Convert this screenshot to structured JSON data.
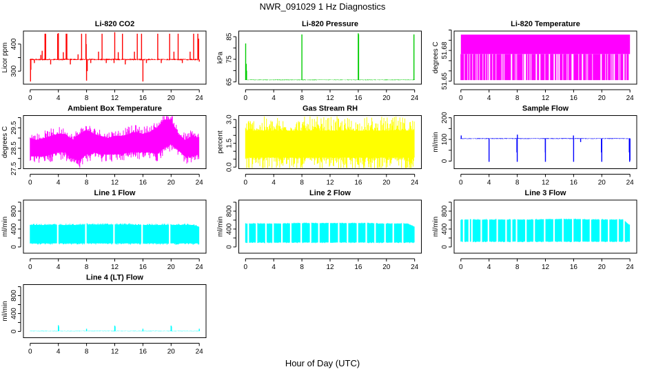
{
  "title": "NWR_091029  1 Hz Diagnostics",
  "xlabel": "Hour of Day (UTC)",
  "chart_data": [
    {
      "type": "line",
      "title": "Li-820 CO2",
      "ylabel": "Licor ppm",
      "color": "#FF0000",
      "xlim": [
        0,
        24
      ],
      "ylim": [
        252,
        448
      ],
      "yticks": [
        300,
        350,
        400
      ],
      "ylabels": [
        "300",
        "400"
      ],
      "ylabel_values": [
        300,
        400
      ],
      "xticks": [
        0,
        4,
        8,
        12,
        16,
        20,
        24
      ],
      "kind": "baseline",
      "base": 343,
      "noise": 3,
      "spikes": [
        [
          0.05,
          262
        ],
        [
          0.1,
          305
        ],
        [
          0.6,
          330
        ],
        [
          1.5,
          360
        ],
        [
          1.7,
          375
        ],
        [
          2.1,
          438
        ],
        [
          2.2,
          438
        ],
        [
          2.9,
          325
        ],
        [
          3.9,
          438
        ],
        [
          4.0,
          440
        ],
        [
          4.7,
          370
        ],
        [
          5.1,
          438
        ],
        [
          5.2,
          438
        ],
        [
          5.7,
          325
        ],
        [
          6.8,
          362
        ],
        [
          7.3,
          438
        ],
        [
          7.9,
          438
        ],
        [
          7.95,
          400
        ],
        [
          8.0,
          265
        ],
        [
          8.1,
          300
        ],
        [
          8.6,
          330
        ],
        [
          9.7,
          372
        ],
        [
          10.2,
          438
        ],
        [
          10.8,
          330
        ],
        [
          11.9,
          330
        ],
        [
          12.0,
          444
        ],
        [
          12.5,
          370
        ],
        [
          13.1,
          438
        ],
        [
          13.5,
          325
        ],
        [
          14.8,
          372
        ],
        [
          15.2,
          438
        ],
        [
          15.8,
          438
        ],
        [
          16.0,
          262
        ],
        [
          16.5,
          330
        ],
        [
          18.1,
          438
        ],
        [
          18.6,
          330
        ],
        [
          19.8,
          438
        ],
        [
          20.4,
          372
        ],
        [
          21.0,
          438
        ],
        [
          21.6,
          330
        ],
        [
          22.7,
          372
        ],
        [
          23.2,
          438
        ],
        [
          23.8,
          438
        ],
        [
          23.9,
          420
        ],
        [
          24.0,
          335
        ]
      ]
    },
    {
      "type": "line",
      "title": "Li-820 Pressure",
      "ylabel": "kPa",
      "color": "#00CC00",
      "xlim": [
        0,
        24
      ],
      "ylim": [
        64,
        87.5
      ],
      "yticks": [
        65,
        70,
        75,
        80,
        85
      ],
      "ylabels": [
        "65",
        "75",
        "85"
      ],
      "ylabel_values": [
        65,
        75,
        85
      ],
      "xticks": [
        0,
        4,
        8,
        12,
        16,
        20,
        24
      ],
      "kind": "baseline",
      "base": 65.9,
      "noise": 0.15,
      "spikes": [
        [
          0.02,
          82
        ],
        [
          0.1,
          73
        ],
        [
          0.15,
          70
        ],
        [
          8.0,
          86
        ],
        [
          16.0,
          86.5
        ],
        [
          16.05,
          86
        ],
        [
          23.9,
          86
        ]
      ]
    },
    {
      "type": "line",
      "title": "Li-820 Temperature",
      "ylabel": "degrees C",
      "color": "#FF00FF",
      "xlim": [
        0,
        24
      ],
      "ylim": [
        51.647,
        51.699
      ],
      "yticks": [
        51.65,
        51.66,
        51.67,
        51.68,
        51.69,
        51.7
      ],
      "ylabels": [
        "51.65",
        "51.68"
      ],
      "ylabel_values": [
        51.65,
        51.68
      ],
      "xticks": [
        0,
        4,
        8,
        12,
        16,
        20,
        24
      ],
      "kind": "toggle",
      "levels": [
        51.651,
        51.6765,
        51.6955
      ],
      "low_fraction": 0.72
    },
    {
      "type": "line",
      "title": "Ambient Box Temperature",
      "ylabel": "degrees C",
      "color": "#FF00FF",
      "xlim": [
        0,
        24
      ],
      "ylim": [
        27.5,
        30.1
      ],
      "yticks": [
        27.5,
        28.0,
        28.5,
        29.0,
        29.5,
        30.0
      ],
      "ylabels": [
        "27.5",
        "28.5",
        "29.5"
      ],
      "ylabel_values": [
        27.5,
        28.5,
        29.5
      ],
      "xticks": [
        0,
        4,
        8,
        12,
        16,
        20,
        24
      ],
      "kind": "band",
      "lo": [
        28.1,
        28.1,
        28.1,
        28.2,
        28.3,
        28.3,
        28.0,
        27.9,
        28.2,
        28.3,
        28.2,
        28.2,
        28.2,
        28.2,
        28.3,
        28.3,
        28.3,
        28.3,
        28.2,
        28.5,
        28.7,
        28.4,
        28.1,
        28.1,
        28.2
      ],
      "hi": [
        29.0,
        28.9,
        29.0,
        29.1,
        29.2,
        29.2,
        28.9,
        29.2,
        29.4,
        29.2,
        29.1,
        29.0,
        29.1,
        29.1,
        29.2,
        29.3,
        29.2,
        29.3,
        29.5,
        29.9,
        29.9,
        29.2,
        28.9,
        29.1,
        29.0
      ],
      "noise": 0.25
    },
    {
      "type": "line",
      "title": "Gas Stream RH",
      "ylabel": "percent",
      "color": "#FFFF00",
      "xlim": [
        0,
        24
      ],
      "ylim": [
        -0.1,
        3.25
      ],
      "yticks": [
        0.0,
        0.5,
        1.0,
        1.5,
        2.0,
        2.5,
        3.0
      ],
      "ylabels": [
        "0.0",
        "1.5",
        "3.0"
      ],
      "ylabel_values": [
        0,
        1.5,
        3.0
      ],
      "xticks": [
        0,
        4,
        8,
        12,
        16,
        20,
        24
      ],
      "kind": "band",
      "lo": [
        0.6,
        0.6,
        0.6,
        0.6,
        0.6,
        0.6,
        0.6,
        0.6,
        0.6,
        0.6,
        0.6,
        0.6,
        0.6,
        0.6,
        0.6,
        0.6,
        0.6,
        0.6,
        0.6,
        0.6,
        0.6,
        0.6,
        0.6,
        0.6,
        0.6
      ],
      "hi": [
        2.3,
        2.3,
        2.3,
        2.3,
        2.3,
        2.3,
        2.3,
        2.3,
        2.3,
        2.3,
        2.3,
        2.3,
        2.3,
        2.3,
        2.3,
        2.3,
        2.3,
        2.3,
        2.3,
        2.3,
        2.3,
        2.3,
        2.3,
        2.3,
        2.3
      ],
      "noise": 0.6
    },
    {
      "type": "line",
      "title": "Sample Flow",
      "ylabel": "ml/min",
      "color": "#0000FF",
      "xlim": [
        0,
        24
      ],
      "ylim": [
        -35,
        210
      ],
      "yticks": [
        0,
        50,
        100,
        150,
        200
      ],
      "ylabels": [
        "0",
        "100",
        "200"
      ],
      "ylabel_values": [
        0,
        100,
        200
      ],
      "xticks": [
        0,
        4,
        8,
        12,
        16,
        20,
        24
      ],
      "kind": "baseline",
      "base": 104,
      "noise": 2,
      "spikes": [
        [
          0.05,
          118
        ],
        [
          4.0,
          -3
        ],
        [
          7.95,
          40
        ],
        [
          8.0,
          -3
        ],
        [
          8.02,
          122
        ],
        [
          12.0,
          -3
        ],
        [
          11.98,
          40
        ],
        [
          16.0,
          -3
        ],
        [
          15.98,
          118
        ],
        [
          17.0,
          88
        ],
        [
          19.95,
          40
        ],
        [
          20.0,
          -3
        ],
        [
          23.9,
          40
        ],
        [
          23.95,
          -3
        ],
        [
          24.0,
          3
        ]
      ]
    },
    {
      "type": "line",
      "title": "Line 1 Flow",
      "ylabel": "ml/min",
      "color": "#00FFFF",
      "xlim": [
        0,
        24
      ],
      "ylim": [
        -140,
        1047
      ],
      "yticks": [
        0,
        200,
        400,
        600,
        800,
        1000
      ],
      "ylabels": [
        "0",
        "400",
        "800"
      ],
      "ylabel_values": [
        0,
        400,
        800
      ],
      "xticks": [
        0,
        4,
        8,
        12,
        16,
        20,
        24
      ],
      "kind": "band",
      "lo": [
        80,
        80,
        80,
        80,
        80,
        80,
        80,
        80,
        80,
        80,
        80,
        80,
        80,
        80,
        80,
        80,
        80,
        80,
        80,
        80,
        80,
        80,
        80,
        80,
        80
      ],
      "hi": [
        490,
        490,
        490,
        490,
        490,
        490,
        490,
        490,
        500,
        500,
        500,
        500,
        500,
        500,
        500,
        490,
        490,
        490,
        490,
        490,
        490,
        490,
        490,
        490,
        450
      ],
      "noise": 20,
      "gaps": [
        3.9,
        7.9,
        11.9,
        15.9,
        19.8
      ]
    },
    {
      "type": "line",
      "title": "Line 2 Flow",
      "ylabel": "ml/min",
      "color": "#00FFFF",
      "xlim": [
        0,
        24
      ],
      "ylim": [
        -140,
        1047
      ],
      "yticks": [
        0,
        200,
        400,
        600,
        800,
        1000
      ],
      "ylabels": [
        "0",
        "400",
        "800"
      ],
      "ylabel_values": [
        0,
        400,
        800
      ],
      "xticks": [
        0,
        4,
        8,
        12,
        16,
        20,
        24
      ],
      "kind": "band",
      "lo": [
        100,
        100,
        100,
        100,
        100,
        100,
        100,
        100,
        100,
        100,
        100,
        100,
        100,
        100,
        100,
        100,
        100,
        100,
        100,
        100,
        100,
        100,
        100,
        100,
        100
      ],
      "hi": [
        520,
        520,
        520,
        520,
        520,
        520,
        520,
        530,
        530,
        530,
        530,
        530,
        530,
        530,
        530,
        530,
        530,
        530,
        530,
        520,
        520,
        520,
        520,
        520,
        450
      ],
      "noise": 10,
      "gaps": [
        0.4,
        1.6,
        2.9,
        3.9,
        5.2,
        6.4,
        7.9,
        9.2,
        10.4,
        11.9,
        13.2,
        14.5,
        15.9,
        17.1,
        18.4,
        19.8,
        21.0,
        22.3
      ]
    },
    {
      "type": "line",
      "title": "Line 3 Flow",
      "ylabel": "ml/min",
      "color": "#00FFFF",
      "xlim": [
        0,
        24
      ],
      "ylim": [
        -140,
        1047
      ],
      "yticks": [
        0,
        200,
        400,
        600,
        800,
        1000
      ],
      "ylabels": [
        "0",
        "400",
        "800"
      ],
      "ylabel_values": [
        0,
        400,
        800
      ],
      "xticks": [
        0,
        4,
        8,
        12,
        16,
        20,
        24
      ],
      "kind": "band",
      "lo": [
        120,
        120,
        120,
        120,
        120,
        120,
        120,
        120,
        120,
        120,
        120,
        120,
        120,
        120,
        120,
        120,
        120,
        120,
        120,
        120,
        120,
        120,
        120,
        120,
        120
      ],
      "hi": [
        600,
        610,
        610,
        610,
        610,
        610,
        610,
        610,
        610,
        610,
        610,
        610,
        620,
        620,
        620,
        620,
        620,
        620,
        610,
        610,
        610,
        610,
        610,
        610,
        480
      ],
      "noise": 10,
      "gaps": [
        0.4,
        1.2,
        1.6,
        2.9,
        3.9,
        5.2,
        6.4,
        7.2,
        7.9,
        9.2,
        10.4,
        11.9,
        13.2,
        14.5,
        15.9,
        17.1,
        18.4,
        19.8,
        21.0,
        22.3,
        23.2
      ]
    },
    {
      "type": "line",
      "title": "Line 4 (LT) Flow",
      "ylabel": "ml/min",
      "color": "#00FFFF",
      "xlim": [
        0,
        24
      ],
      "ylim": [
        -140,
        1047
      ],
      "yticks": [
        0,
        200,
        400,
        600,
        800,
        1000
      ],
      "ylabels": [
        "0",
        "400",
        "800"
      ],
      "ylabel_values": [
        0,
        400,
        800
      ],
      "xticks": [
        0,
        4,
        8,
        12,
        16,
        20,
        24
      ],
      "kind": "baseline",
      "base": 8,
      "noise": 6,
      "spikes": [
        [
          4.0,
          140
        ],
        [
          4.05,
          110
        ],
        [
          8.0,
          60
        ],
        [
          12.0,
          130
        ],
        [
          12.05,
          110
        ],
        [
          16.0,
          60
        ],
        [
          20.0,
          130
        ],
        [
          20.05,
          110
        ],
        [
          24.0,
          60
        ]
      ]
    }
  ]
}
